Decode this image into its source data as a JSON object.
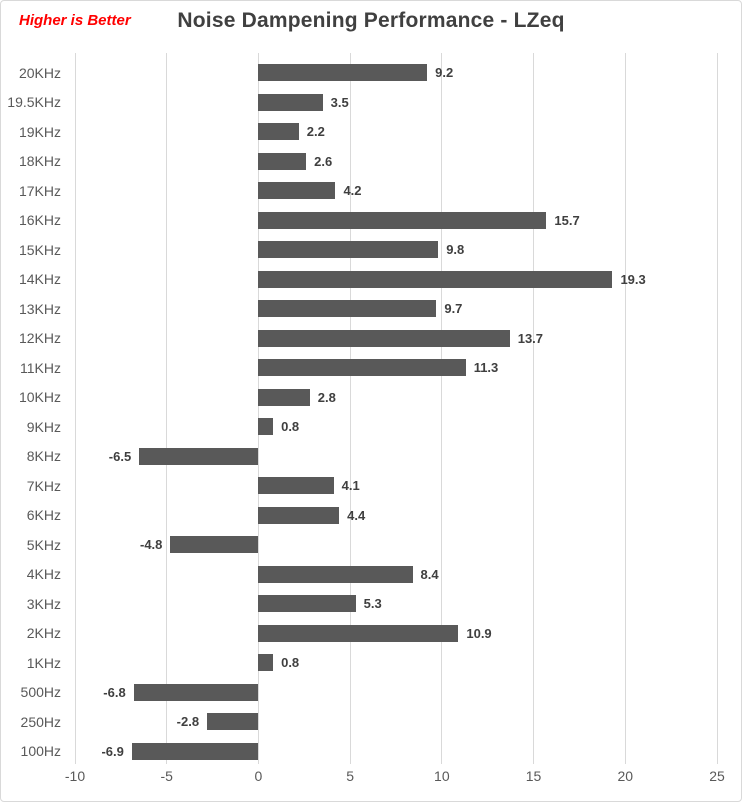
{
  "annotation": "Higher is Better",
  "title": "Noise Dampening Performance - LZeq",
  "colors": {
    "bar": "#595959",
    "gridline": "#d9d9d9",
    "axis_text": "#595959",
    "title_text": "#404040",
    "annotation_text": "#ff0000",
    "data_label": "#3f3f3f",
    "frame_border": "#d9d9d9"
  },
  "chart_data": {
    "type": "bar",
    "orientation": "horizontal",
    "title": "Noise Dampening Performance - LZeq",
    "subtitle_annotation": "Higher is Better",
    "categories": [
      "20KHz",
      "19.5KHz",
      "19KHz",
      "18KHz",
      "17KHz",
      "16KHz",
      "15KHz",
      "14KHz",
      "13KHz",
      "12KHz",
      "11KHz",
      "10KHz",
      "9KHz",
      "8KHz",
      "7KHz",
      "6KHz",
      "5KHz",
      "4KHz",
      "3KHz",
      "2KHz",
      "1KHz",
      "500Hz",
      "250Hz",
      "100Hz"
    ],
    "values": [
      9.2,
      3.5,
      2.2,
      2.6,
      4.2,
      15.7,
      9.8,
      19.3,
      9.7,
      13.7,
      11.3,
      2.8,
      0.8,
      -6.5,
      4.1,
      4.4,
      -4.8,
      8.4,
      5.3,
      10.9,
      0.8,
      -6.8,
      -2.8,
      -6.9
    ],
    "xlim": [
      -10,
      25
    ],
    "x_ticks": [
      -10,
      -5,
      0,
      5,
      10,
      15,
      20,
      25
    ],
    "xlabel": "",
    "ylabel": "",
    "grid": true,
    "data_labels": true,
    "legend": "none"
  }
}
